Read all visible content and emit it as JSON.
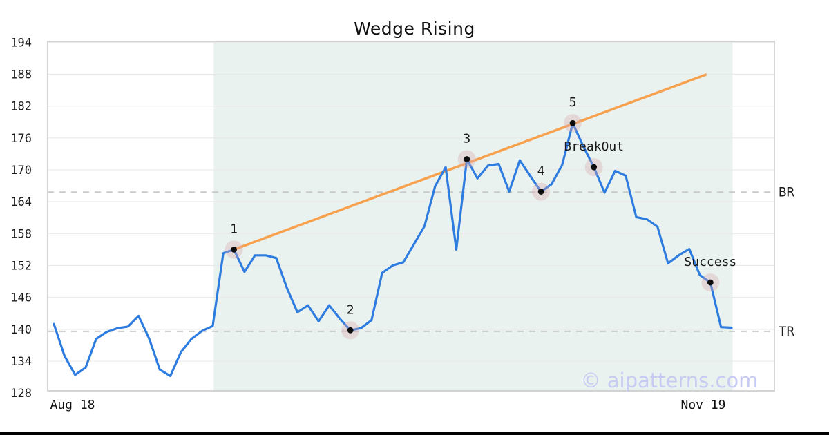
{
  "title": "Wedge Rising",
  "watermark": "© aipatterns.com",
  "x_axis": {
    "left_label": "Aug 18",
    "right_label": "Nov 19"
  },
  "y_axis": {
    "ticks": [
      128,
      134,
      140,
      146,
      152,
      158,
      164,
      170,
      176,
      182,
      188,
      194
    ]
  },
  "colors": {
    "price_line": "#2e7ce0",
    "trend_line": "#f7a04e",
    "pattern_zone": "#e9f2ee",
    "grid": "#e9e9e9",
    "dashed_level": "#c9c9c9",
    "spine": "#c6c6c6",
    "marker_dot": "#0d0d0d",
    "marker_halo": "#dba6b0",
    "label_text": "#1a1a1a",
    "watermark_text": "#c7cbf3"
  },
  "chart_data": {
    "type": "line",
    "title": "Wedge Rising",
    "xlabel": "",
    "ylabel": "",
    "x_tick_labels": [
      "Aug 18",
      "Nov 19"
    ],
    "ylim": [
      128.4,
      194.2
    ],
    "y_ticks": [
      128,
      134,
      140,
      146,
      152,
      158,
      164,
      170,
      176,
      182,
      188,
      194
    ],
    "grid": true,
    "series": [
      {
        "name": "price",
        "values": [
          141.0,
          135.0,
          131.4,
          132.8,
          138.2,
          139.5,
          140.2,
          140.5,
          142.5,
          138.2,
          132.4,
          131.2,
          135.7,
          138.2,
          139.7,
          140.6,
          154.3,
          155.0,
          150.8,
          153.9,
          153.9,
          153.4,
          147.8,
          143.2,
          144.5,
          141.5,
          144.5,
          142.0,
          139.8,
          140.2,
          141.7,
          150.6,
          152.0,
          152.6,
          156.0,
          159.4,
          166.9,
          170.5,
          155.0,
          172.0,
          168.4,
          170.8,
          171.1,
          165.9,
          171.8,
          168.8,
          165.9,
          167.3,
          170.9,
          178.8,
          174.4,
          170.5,
          165.7,
          169.8,
          168.9,
          161.1,
          160.7,
          159.3,
          152.4,
          153.9,
          155.1,
          150.2,
          148.8,
          140.4,
          140.3
        ]
      }
    ],
    "trendline": {
      "start_index": 17,
      "start_value": 155.0,
      "end_index": 59,
      "end_value": 187.9
    },
    "levels": [
      {
        "label": "BR",
        "value": 165.8
      },
      {
        "label": "TR",
        "value": 139.6
      }
    ],
    "pattern_zone": {
      "start_index": 15,
      "end_index": 64
    },
    "annotations": [
      {
        "label": "1",
        "index": 17,
        "value": 155.0
      },
      {
        "label": "2",
        "index": 28,
        "value": 139.8
      },
      {
        "label": "3",
        "index": 39,
        "value": 172.0
      },
      {
        "label": "4",
        "index": 46,
        "value": 165.9
      },
      {
        "label": "5",
        "index": 49,
        "value": 178.8
      },
      {
        "label": "BreakOut",
        "index": 51,
        "value": 170.5
      },
      {
        "label": "Success",
        "index": 62,
        "value": 148.8
      }
    ]
  }
}
